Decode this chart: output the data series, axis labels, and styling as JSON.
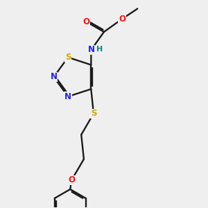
{
  "bg_color": "#efefef",
  "colors": {
    "bond": "#1a1a1a",
    "N": "#2020ff",
    "O": "#ff1010",
    "S": "#ccaa00",
    "NH": "#008888"
  },
  "bond_lw": 1.7,
  "dbo": 0.055,
  "figsize": [
    3.0,
    3.0
  ],
  "dpi": 100,
  "xlim": [
    2.8,
    8.2
  ],
  "ylim": [
    1.5,
    9.5
  ]
}
